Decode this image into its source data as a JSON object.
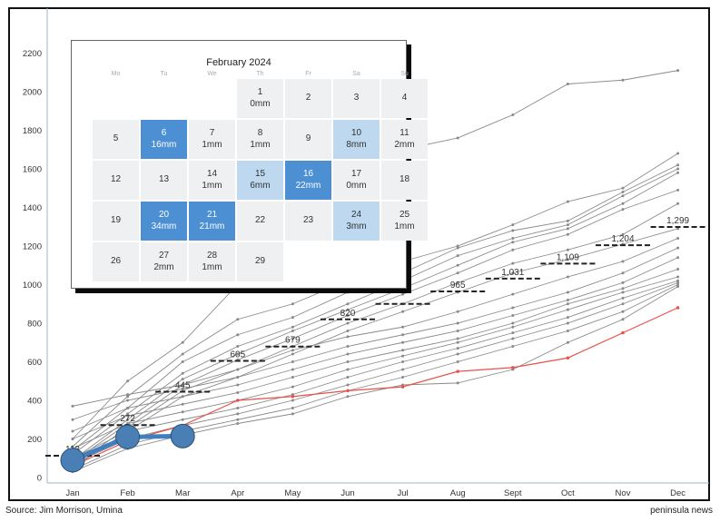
{
  "source": "Source: Jim Morrison, Umina",
  "brand": "peninsula news",
  "chart_data": {
    "type": "line",
    "x": [
      "Jan",
      "Feb",
      "Mar",
      "Apr",
      "May",
      "Jun",
      "Jul",
      "Aug",
      "Sept",
      "Oct",
      "Nov",
      "Dec"
    ],
    "ylim": [
      0,
      2200
    ],
    "yticks": [
      0,
      200,
      400,
      600,
      800,
      1000,
      1200,
      1400,
      1600,
      1800,
      2000,
      2200
    ],
    "grid": false,
    "historical_series": [
      [
        200,
        500,
        700,
        1000,
        1300,
        1500,
        1700,
        1760,
        1880,
        2040,
        2060,
        2110
      ],
      [
        160,
        420,
        640,
        820,
        900,
        1020,
        1120,
        1200,
        1310,
        1430,
        1500,
        1680
      ],
      [
        140,
        360,
        600,
        740,
        830,
        960,
        1060,
        1190,
        1280,
        1330,
        1480,
        1620
      ],
      [
        120,
        330,
        540,
        680,
        780,
        900,
        1020,
        1150,
        1240,
        1310,
        1460,
        1600
      ],
      [
        90,
        300,
        510,
        640,
        760,
        870,
        980,
        1100,
        1220,
        1290,
        1420,
        1580
      ],
      [
        80,
        280,
        480,
        610,
        720,
        840,
        950,
        1060,
        1180,
        1260,
        1390,
        1490
      ],
      [
        60,
        260,
        450,
        560,
        680,
        800,
        900,
        1010,
        1110,
        1180,
        1260,
        1420
      ],
      [
        50,
        240,
        420,
        520,
        640,
        760,
        860,
        960,
        1060,
        1130,
        1210,
        1290
      ],
      [
        370,
        430,
        480,
        560,
        660,
        730,
        780,
        860,
        950,
        1040,
        1120,
        1240
      ],
      [
        300,
        400,
        460,
        520,
        600,
        680,
        740,
        800,
        880,
        960,
        1060,
        1190
      ],
      [
        240,
        360,
        420,
        480,
        560,
        640,
        700,
        760,
        840,
        920,
        1010,
        1140
      ],
      [
        200,
        320,
        380,
        440,
        520,
        600,
        660,
        720,
        800,
        900,
        980,
        1080
      ],
      [
        150,
        280,
        340,
        400,
        470,
        560,
        630,
        700,
        780,
        870,
        960,
        1040
      ],
      [
        100,
        240,
        300,
        360,
        430,
        520,
        600,
        670,
        750,
        830,
        930,
        1020
      ],
      [
        70,
        200,
        270,
        330,
        400,
        480,
        560,
        640,
        720,
        800,
        900,
        1010
      ],
      [
        40,
        170,
        240,
        300,
        360,
        450,
        520,
        600,
        680,
        760,
        860,
        1000
      ],
      [
        30,
        150,
        220,
        280,
        330,
        420,
        480,
        490,
        560,
        700,
        820,
        990
      ]
    ],
    "red_series": [
      60,
      190,
      270,
      400,
      420,
      450,
      470,
      550,
      570,
      620,
      750,
      880
    ],
    "current_series": [
      90,
      210,
      215
    ],
    "averages": {
      "values": [
        113,
        272,
        445,
        605,
        679,
        820,
        900,
        965,
        1031,
        1109,
        1204,
        1299
      ],
      "labels": [
        "113",
        "272",
        "445",
        "605",
        "679",
        "820",
        "",
        "965",
        "1,031",
        "1,109",
        "1,204",
        "1,299"
      ]
    }
  },
  "calendar": {
    "title": "February 2024",
    "weekdays": [
      "Mo",
      "Tu",
      "We",
      "Th",
      "Fr",
      "Sa",
      "Su"
    ],
    "weeks": [
      [
        {
          "day": "",
          "rain": "",
          "tone": "blank"
        },
        {
          "day": "",
          "rain": "",
          "tone": "blank"
        },
        {
          "day": "",
          "rain": "",
          "tone": "blank"
        },
        {
          "day": "1",
          "rain": "0mm",
          "tone": "plain"
        },
        {
          "day": "2",
          "rain": "",
          "tone": "plain"
        },
        {
          "day": "3",
          "rain": "",
          "tone": "plain"
        },
        {
          "day": "4",
          "rain": "",
          "tone": "plain"
        }
      ],
      [
        {
          "day": "5",
          "rain": "",
          "tone": "plain"
        },
        {
          "day": "6",
          "rain": "16mm",
          "tone": "dark"
        },
        {
          "day": "7",
          "rain": "1mm",
          "tone": "plain"
        },
        {
          "day": "8",
          "rain": "1mm",
          "tone": "plain"
        },
        {
          "day": "9",
          "rain": "",
          "tone": "plain"
        },
        {
          "day": "10",
          "rain": "8mm",
          "tone": "light"
        },
        {
          "day": "11",
          "rain": "2mm",
          "tone": "plain"
        }
      ],
      [
        {
          "day": "12",
          "rain": "",
          "tone": "plain"
        },
        {
          "day": "13",
          "rain": "",
          "tone": "plain"
        },
        {
          "day": "14",
          "rain": "1mm",
          "tone": "plain"
        },
        {
          "day": "15",
          "rain": "6mm",
          "tone": "light"
        },
        {
          "day": "16",
          "rain": "22mm",
          "tone": "dark"
        },
        {
          "day": "17",
          "rain": "0mm",
          "tone": "plain"
        },
        {
          "day": "18",
          "rain": "",
          "tone": "plain"
        }
      ],
      [
        {
          "day": "19",
          "rain": "",
          "tone": "plain"
        },
        {
          "day": "20",
          "rain": "34mm",
          "tone": "dark"
        },
        {
          "day": "21",
          "rain": "21mm",
          "tone": "dark"
        },
        {
          "day": "22",
          "rain": "",
          "tone": "plain"
        },
        {
          "day": "23",
          "rain": "",
          "tone": "plain"
        },
        {
          "day": "24",
          "rain": "3mm",
          "tone": "light"
        },
        {
          "day": "25",
          "rain": "1mm",
          "tone": "plain"
        }
      ],
      [
        {
          "day": "26",
          "rain": "",
          "tone": "plain"
        },
        {
          "day": "27",
          "rain": "2mm",
          "tone": "plain"
        },
        {
          "day": "28",
          "rain": "1mm",
          "tone": "plain"
        },
        {
          "day": "29",
          "rain": "",
          "tone": "plain"
        },
        {
          "day": "",
          "rain": "",
          "tone": "blank"
        },
        {
          "day": "",
          "rain": "",
          "tone": "blank"
        },
        {
          "day": "",
          "rain": "",
          "tone": "blank"
        }
      ]
    ]
  },
  "colors": {
    "history": "#8a8a8a",
    "red": "#e8524a",
    "current": "#3f7fc0",
    "marker_fill": "#4a7fb6",
    "marker_stroke": "#2a4f78",
    "average_dash": "#222222",
    "axis": "#9bb5d6",
    "border": "#111111"
  }
}
